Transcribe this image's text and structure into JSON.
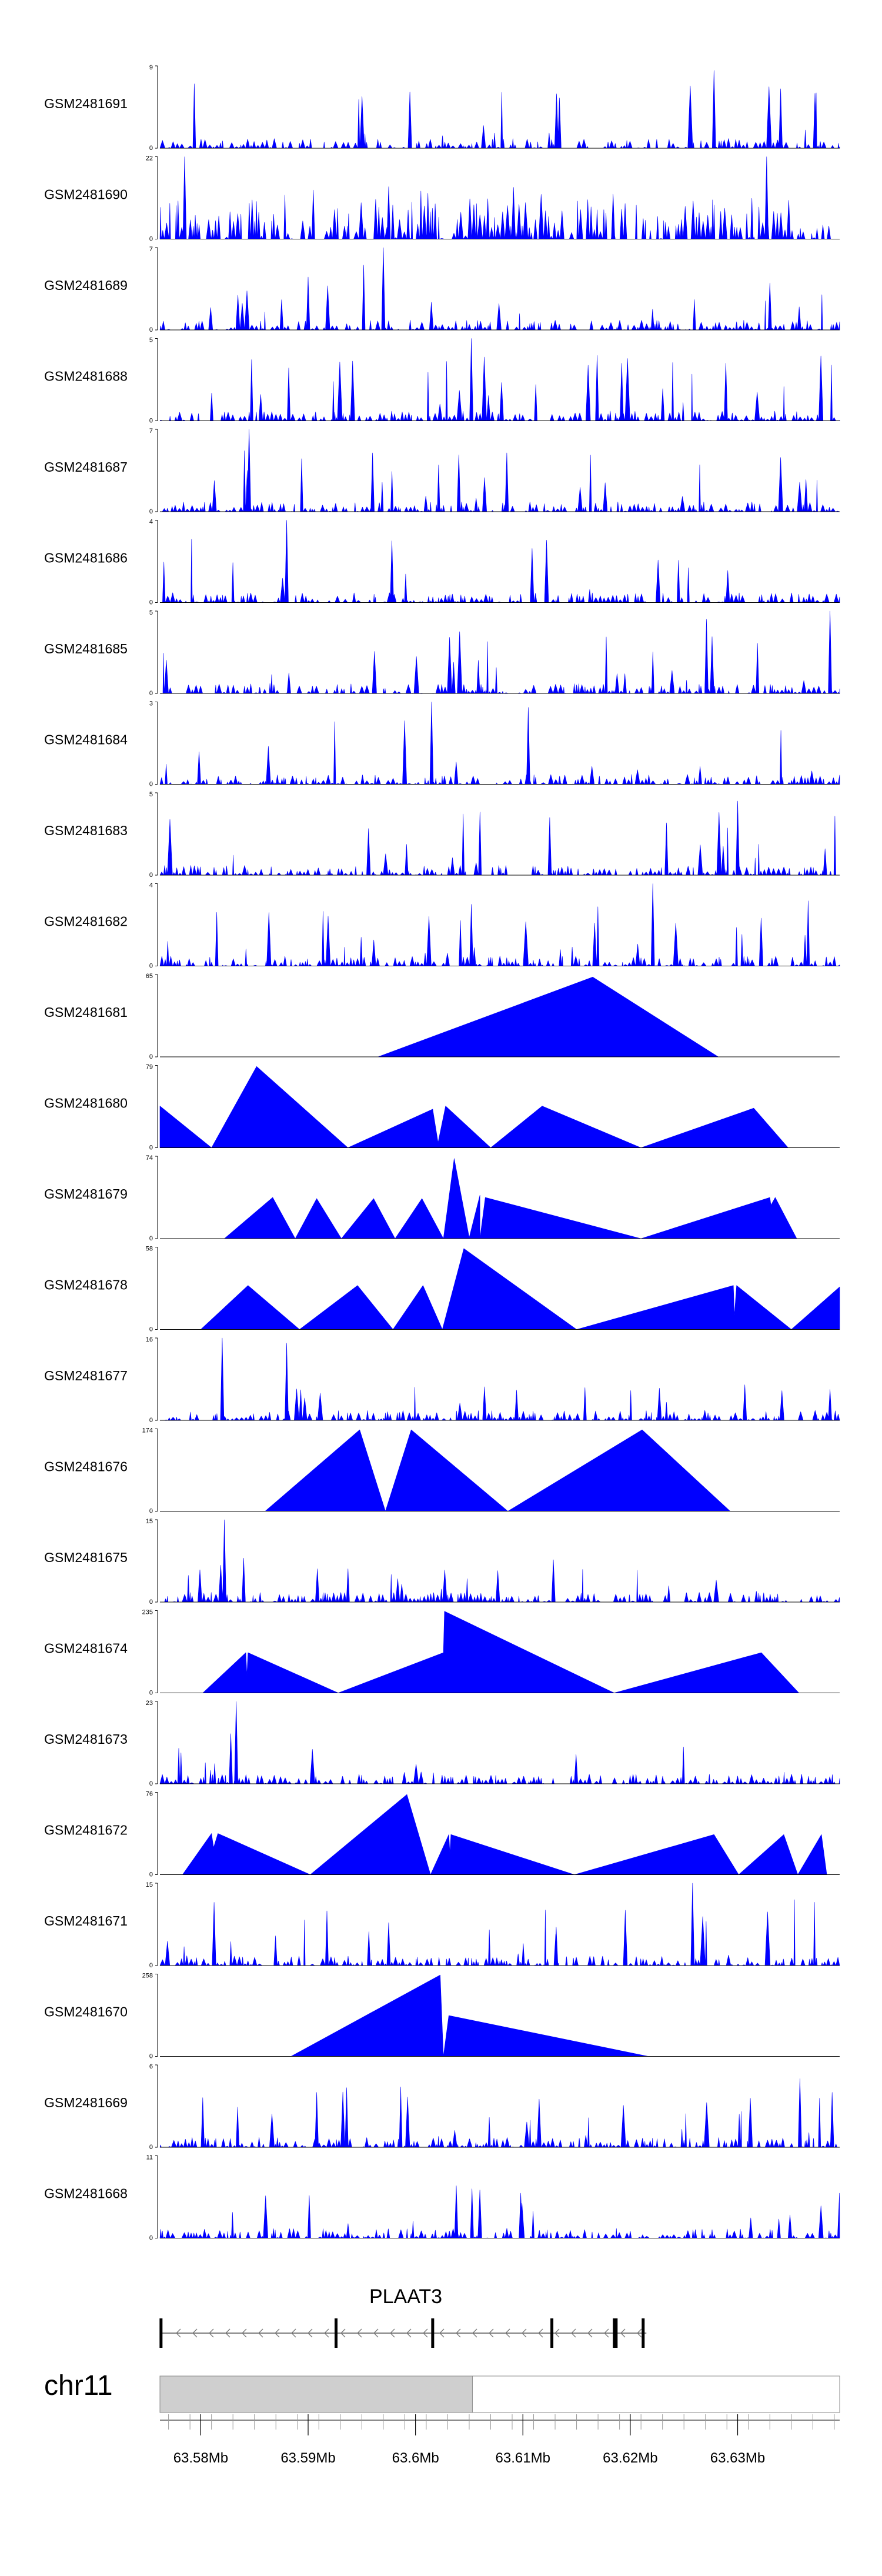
{
  "chart_data": {
    "type": "area",
    "title": "",
    "color": "#0000ff",
    "x_range": [
      63571200,
      63634500
    ],
    "tracks": [
      {
        "name": "GSM2481691",
        "ymax": "9",
        "ymin": "0",
        "style": "dense",
        "seed": 11,
        "peaks": [
          [
            63608400,
            5.5
          ],
          [
            63622800,
            8.5
          ],
          [
            63629000,
            6.5
          ],
          [
            63632200,
            6
          ]
        ]
      },
      {
        "name": "GSM2481690",
        "ymax": "22",
        "ymin": "0",
        "style": "sparse",
        "seed": 12,
        "peaks": [
          [
            63573500,
            22
          ],
          [
            63592500,
            14
          ],
          [
            63627700,
            22
          ],
          [
            63613400,
            12
          ]
        ]
      },
      {
        "name": "GSM2481689",
        "ymax": "7",
        "ymin": "0",
        "style": "dense",
        "seed": 13,
        "peaks": [
          [
            63592000,
            7
          ],
          [
            63585000,
            4.5
          ],
          [
            63628000,
            4
          ]
        ]
      },
      {
        "name": "GSM2481688",
        "ymax": "5",
        "ymin": "0",
        "style": "dense",
        "seed": 14,
        "peaks": [
          [
            63600200,
            5
          ],
          [
            63614200,
            3.5
          ],
          [
            63623900,
            3.5
          ]
        ]
      },
      {
        "name": "GSM2481687",
        "ymax": "7",
        "ymin": "0",
        "style": "dense",
        "seed": 15,
        "peaks": [
          [
            63579500,
            7
          ],
          [
            63591000,
            5
          ],
          [
            63603500,
            5
          ]
        ]
      },
      {
        "name": "GSM2481686",
        "ymax": "4",
        "ymin": "0",
        "style": "dense",
        "seed": 16,
        "peaks": [
          [
            63583000,
            4
          ],
          [
            63592800,
            3
          ]
        ]
      },
      {
        "name": "GSM2481685",
        "ymax": "5",
        "ymin": "0",
        "style": "dense",
        "seed": 17,
        "peaks": [
          [
            63622100,
            4.5
          ],
          [
            63633600,
            5
          ]
        ]
      },
      {
        "name": "GSM2481684",
        "ymax": "3",
        "ymin": "0",
        "style": "dense",
        "seed": 18,
        "peaks": [
          [
            63596500,
            3
          ],
          [
            63605500,
            2.8
          ]
        ]
      },
      {
        "name": "GSM2481683",
        "ymax": "5",
        "ymin": "0",
        "style": "dense",
        "seed": 19,
        "peaks": [
          [
            63625000,
            4.5
          ],
          [
            63607500,
            3.5
          ]
        ]
      },
      {
        "name": "GSM2481682",
        "ymax": "4",
        "ymin": "0",
        "style": "dense",
        "seed": 20,
        "peaks": [
          [
            63617100,
            4
          ],
          [
            63600200,
            3
          ]
        ]
      },
      {
        "name": "GSM2481681",
        "ymax": "65",
        "ymin": "0",
        "style": "triangles",
        "pts": [
          [
            63591500,
            0
          ],
          [
            63611500,
            63
          ],
          [
            63623200,
            0
          ]
        ]
      },
      {
        "name": "GSM2481680",
        "ymax": "79",
        "ymin": "0",
        "style": "triangles",
        "pts": [
          [
            63571200,
            40
          ],
          [
            63576000,
            0
          ],
          [
            63580200,
            78
          ],
          [
            63588700,
            0
          ],
          [
            63596600,
            37
          ],
          [
            63597100,
            5
          ],
          [
            63597800,
            40
          ],
          [
            63602000,
            0
          ],
          [
            63606800,
            40
          ],
          [
            63616000,
            0
          ],
          [
            63626500,
            38
          ],
          [
            63629700,
            0
          ]
        ]
      },
      {
        "name": "GSM2481679",
        "ymax": "74",
        "ymin": "0",
        "style": "triangles",
        "pts": [
          [
            63577200,
            0
          ],
          [
            63581700,
            37
          ],
          [
            63583800,
            0
          ],
          [
            63585800,
            36
          ],
          [
            63588100,
            0
          ],
          [
            63591100,
            36
          ],
          [
            63593100,
            0
          ],
          [
            63595600,
            36
          ],
          [
            63597600,
            0
          ],
          [
            63598600,
            72
          ],
          [
            63600000,
            1
          ],
          [
            63601000,
            39
          ],
          [
            63601000,
            0
          ],
          [
            63601500,
            37
          ],
          [
            63616000,
            0
          ],
          [
            63628000,
            37
          ],
          [
            63628100,
            30
          ],
          [
            63628500,
            37
          ],
          [
            63630500,
            0
          ]
        ]
      },
      {
        "name": "GSM2481678",
        "ymax": "58",
        "ymin": "0",
        "style": "triangles",
        "pts": [
          [
            63575000,
            0
          ],
          [
            63579400,
            31
          ],
          [
            63584200,
            0
          ],
          [
            63589600,
            31
          ],
          [
            63592900,
            0
          ],
          [
            63595700,
            31
          ],
          [
            63597500,
            0
          ],
          [
            63599500,
            57
          ],
          [
            63610000,
            0
          ],
          [
            63624600,
            31
          ],
          [
            63624700,
            10
          ],
          [
            63624900,
            31
          ],
          [
            63630000,
            0
          ],
          [
            63634500,
            30
          ],
          [
            63634500,
            0
          ]
        ]
      },
      {
        "name": "GSM2481677",
        "ymax": "16",
        "ymin": "0",
        "style": "dense",
        "seed": 21,
        "bg": 0.45,
        "peaks": [
          [
            63577000,
            16
          ],
          [
            63583000,
            15
          ],
          [
            63633600,
            6
          ]
        ]
      },
      {
        "name": "GSM2481676",
        "ymax": "174",
        "ymin": "0",
        "style": "triangles",
        "pts": [
          [
            63581000,
            0
          ],
          [
            63589800,
            172
          ],
          [
            63592200,
            0
          ],
          [
            63594600,
            172
          ],
          [
            63603600,
            0
          ],
          [
            63616100,
            172
          ],
          [
            63624300,
            0
          ]
        ]
      },
      {
        "name": "GSM2481675",
        "ymax": "15",
        "ymin": "0",
        "style": "dense",
        "seed": 22,
        "bg": 0.55,
        "peaks": [
          [
            63577200,
            15
          ],
          [
            63579000,
            8
          ]
        ]
      },
      {
        "name": "GSM2481674",
        "ymax": "235",
        "ymin": "0",
        "style": "triangles",
        "pts": [
          [
            63575200,
            0
          ],
          [
            63579200,
            115
          ],
          [
            63579300,
            50
          ],
          [
            63579400,
            115
          ],
          [
            63587800,
            0
          ],
          [
            63597600,
            115
          ],
          [
            63597700,
            233
          ],
          [
            63613500,
            0
          ],
          [
            63627200,
            115
          ],
          [
            63630700,
            0
          ]
        ]
      },
      {
        "name": "GSM2481673",
        "ymax": "23",
        "ymin": "0",
        "style": "dense",
        "seed": 23,
        "bg": 0.45,
        "peaks": [
          [
            63578300,
            23
          ],
          [
            63577800,
            14
          ]
        ]
      },
      {
        "name": "GSM2481672",
        "ymax": "76",
        "ymin": "0",
        "style": "triangles",
        "pts": [
          [
            63573300,
            0
          ],
          [
            63576000,
            38
          ],
          [
            63576200,
            25
          ],
          [
            63576600,
            38
          ],
          [
            63585200,
            0
          ],
          [
            63594200,
            74
          ],
          [
            63596400,
            0
          ],
          [
            63598100,
            37
          ],
          [
            63598200,
            20
          ],
          [
            63598300,
            37
          ],
          [
            63609800,
            0
          ],
          [
            63622800,
            37
          ],
          [
            63625100,
            0
          ],
          [
            63629300,
            37
          ],
          [
            63630600,
            0
          ],
          [
            63632800,
            37
          ],
          [
            63633300,
            0
          ]
        ]
      },
      {
        "name": "GSM2481671",
        "ymax": "15",
        "ymin": "0",
        "style": "dense",
        "seed": 24,
        "peaks": [
          [
            63620800,
            15
          ],
          [
            63608100,
            7
          ]
        ]
      },
      {
        "name": "GSM2481670",
        "ymax": "258",
        "ymin": "0",
        "style": "triangles",
        "pts": [
          [
            63583400,
            0
          ],
          [
            63597300,
            255
          ],
          [
            63597600,
            0
          ],
          [
            63598100,
            128
          ],
          [
            63616700,
            0
          ]
        ]
      },
      {
        "name": "GSM2481669",
        "ymax": "6",
        "ymin": "0",
        "style": "dense",
        "seed": 25,
        "peaks": [
          [
            63630800,
            5
          ],
          [
            63633800,
            4
          ],
          [
            63585800,
            4
          ]
        ]
      },
      {
        "name": "GSM2481668",
        "ymax": "11",
        "ymin": "0",
        "style": "dense",
        "seed": 26,
        "bg": 0.6,
        "peaks": [
          [
            63598800,
            7
          ],
          [
            63604800,
            6
          ]
        ]
      }
    ],
    "gene": {
      "name": "PLAAT3",
      "strand": "-",
      "start": 63571200,
      "end": 63616500,
      "exons": [
        63571300,
        63587600,
        63596600,
        63607700,
        63613600,
        63616200
      ]
    },
    "chromosome": {
      "label": "chr11",
      "highlight": [
        63571200,
        63600300
      ]
    },
    "xaxis": {
      "ticks": [
        63575000,
        63585000,
        63595000,
        63605000,
        63615000,
        63625000
      ],
      "tick_labels": [
        "63.58Mb",
        "63.59Mb",
        "63.6Mb",
        "63.61Mb",
        "63.62Mb",
        "63.63Mb"
      ],
      "minor_step": 2000
    }
  }
}
